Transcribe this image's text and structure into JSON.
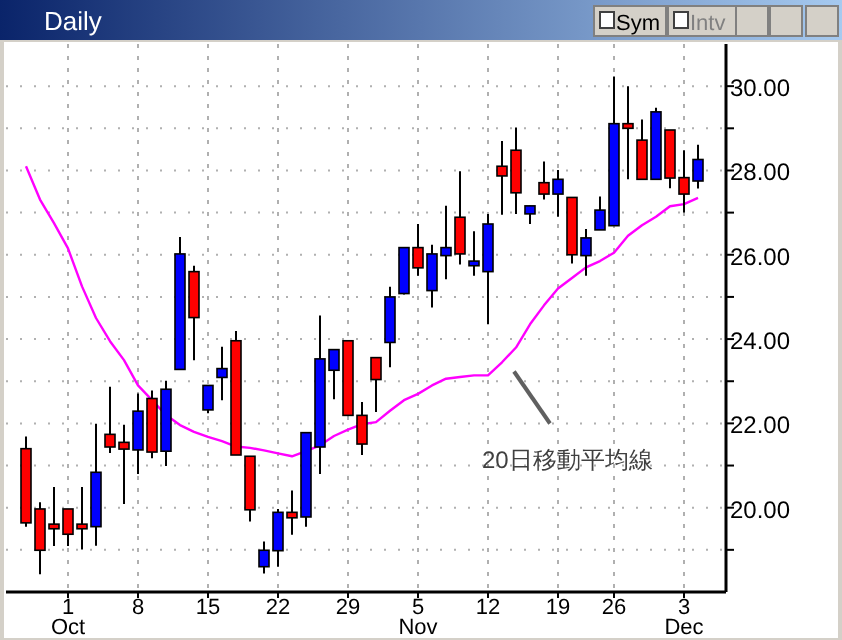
{
  "chart_data": {
    "type": "candlestick",
    "title": "Daily",
    "annotations": [
      "Sym",
      "Intv"
    ],
    "categories": [
      null,
      null,
      null,
      "1\nOct",
      null,
      null,
      null,
      null,
      "8",
      null,
      null,
      null,
      null,
      "15",
      null,
      null,
      null,
      null,
      "22",
      null,
      null,
      null,
      null,
      "29",
      null,
      null,
      null,
      null,
      "5\nNov",
      null,
      null,
      null,
      null,
      "12",
      null,
      null,
      null,
      null,
      "19",
      null,
      null,
      null,
      "26",
      null,
      null,
      null,
      null,
      "3\nDec",
      null
    ],
    "ohlc": [
      [
        21.4,
        21.69,
        19.55,
        19.64
      ],
      [
        19.97,
        20.13,
        18.42,
        18.99
      ],
      [
        19.61,
        20.49,
        19.09,
        19.5
      ],
      [
        19.97,
        19.97,
        19.09,
        19.37
      ],
      [
        19.61,
        20.49,
        19.01,
        19.5
      ],
      [
        19.55,
        21.99,
        19.1,
        20.84
      ],
      [
        21.74,
        22.87,
        21.3,
        21.44
      ],
      [
        21.55,
        21.97,
        20.09,
        21.39
      ],
      [
        21.37,
        22.71,
        20.8,
        22.29
      ],
      [
        22.59,
        22.78,
        21.17,
        21.32
      ],
      [
        21.34,
        23.01,
        20.99,
        22.81
      ],
      [
        23.28,
        26.42,
        23.28,
        26.02
      ],
      [
        25.6,
        25.74,
        23.5,
        24.51
      ],
      [
        22.32,
        22.9,
        22.24,
        22.9
      ],
      [
        23.09,
        23.82,
        22.55,
        23.3
      ],
      [
        23.96,
        24.19,
        21.25,
        21.25
      ],
      [
        21.22,
        21.22,
        19.67,
        19.95
      ],
      [
        18.6,
        19.2,
        18.44,
        18.99
      ],
      [
        18.98,
        19.97,
        18.6,
        19.89
      ],
      [
        19.89,
        20.41,
        19.36,
        19.76
      ],
      [
        19.78,
        21.78,
        19.55,
        21.78
      ],
      [
        21.44,
        24.56,
        20.8,
        23.53
      ],
      [
        23.26,
        23.75,
        22.57,
        23.75
      ],
      [
        23.96,
        23.96,
        22.19,
        22.19
      ],
      [
        22.19,
        22.51,
        21.25,
        21.51
      ],
      [
        23.56,
        23.56,
        22.27,
        23.04
      ],
      [
        23.92,
        25.24,
        23.33,
        25.0
      ],
      [
        25.08,
        26.18,
        25.06,
        26.17
      ],
      [
        26.17,
        26.73,
        25.5,
        25.69
      ],
      [
        25.15,
        26.24,
        24.75,
        26.02
      ],
      [
        25.98,
        27.16,
        25.42,
        26.17
      ],
      [
        26.89,
        27.98,
        25.77,
        26.02
      ],
      [
        25.74,
        26.56,
        25.5,
        25.85
      ],
      [
        25.6,
        26.97,
        24.35,
        26.73
      ],
      [
        28.1,
        28.7,
        26.95,
        27.87
      ],
      [
        28.48,
        29.02,
        26.97,
        27.47
      ],
      [
        26.97,
        27.16,
        26.73,
        27.16
      ],
      [
        27.71,
        28.21,
        27.31,
        27.44
      ],
      [
        27.44,
        28.01,
        26.9,
        27.79
      ],
      [
        27.36,
        27.36,
        25.79,
        26.0
      ],
      [
        25.98,
        26.61,
        25.5,
        26.4
      ],
      [
        26.59,
        27.38,
        26.59,
        27.06
      ],
      [
        26.69,
        30.23,
        26.69,
        29.11
      ],
      [
        29.11,
        30.0,
        27.79,
        29.0
      ],
      [
        28.72,
        29.21,
        27.79,
        27.79
      ],
      [
        27.79,
        29.49,
        27.79,
        29.39
      ],
      [
        28.96,
        28.96,
        27.58,
        27.82
      ],
      [
        27.83,
        28.48,
        27.0,
        27.44
      ],
      [
        27.75,
        28.61,
        27.57,
        28.26
      ]
    ],
    "colors": [
      "#ff0000",
      "#ff0000",
      "#ff0000",
      "#ff0000",
      "#ff0000",
      "#0000ff",
      "#ff0000",
      "#ff0000",
      "#0000ff",
      "#ff0000",
      "#0000ff",
      "#0000ff",
      "#ff0000",
      "#0000ff",
      "#0000ff",
      "#ff0000",
      "#ff0000",
      "#0000ff",
      "#0000ff",
      "#ff0000",
      "#0000ff",
      "#0000ff",
      "#0000ff",
      "#ff0000",
      "#ff0000",
      "#ff0000",
      "#0000ff",
      "#0000ff",
      "#ff0000",
      "#0000ff",
      "#0000ff",
      "#ff0000",
      "#0000ff",
      "#0000ff",
      "#ff0000",
      "#ff0000",
      "#0000ff",
      "#ff0000",
      "#0000ff",
      "#ff0000",
      "#0000ff",
      "#0000ff",
      "#0000ff",
      "#ff0000",
      "#ff0000",
      "#0000ff",
      "#ff0000",
      "#ff0000",
      "#0000ff"
    ],
    "series": [
      {
        "type": "line",
        "name": "20日移動平均線",
        "color": "#ff00ff",
        "values": [
          28.1,
          27.31,
          26.75,
          26.15,
          25.25,
          24.5,
          23.95,
          23.5,
          22.9,
          22.55,
          22.2,
          21.96,
          21.8,
          21.68,
          21.58,
          21.45,
          21.42,
          21.36,
          21.29,
          21.22,
          21.34,
          21.48,
          21.7,
          21.85,
          21.98,
          22.03,
          22.3,
          22.55,
          22.7,
          22.9,
          23.06,
          23.1,
          23.14,
          23.14,
          23.45,
          23.8,
          24.35,
          24.8,
          25.2,
          25.45,
          25.7,
          25.85,
          26.05,
          26.45,
          26.7,
          26.9,
          27.15,
          27.2,
          27.35
        ]
      }
    ],
    "ylim": [
      18,
      31
    ],
    "yticks": [
      {
        "value": 19,
        "label": null
      },
      {
        "value": 20,
        "label": "20.00"
      },
      {
        "value": 21,
        "label": null
      },
      {
        "value": 22,
        "label": "22.00"
      },
      {
        "value": 23,
        "label": null
      },
      {
        "value": 24,
        "label": "24.00"
      },
      {
        "value": 25,
        "label": null
      },
      {
        "value": 26,
        "label": "26.00"
      },
      {
        "value": 27,
        "label": null
      },
      {
        "value": 28,
        "label": "28.00"
      },
      {
        "value": 29,
        "label": null
      },
      {
        "value": 30,
        "label": "30.00"
      }
    ],
    "grid": true
  }
}
